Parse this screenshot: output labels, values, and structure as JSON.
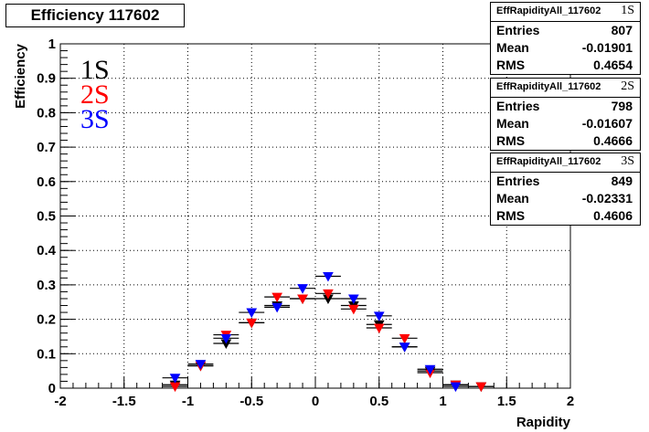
{
  "title": "Efficiency 117602",
  "chart_data": {
    "type": "scatter",
    "title": "Efficiency 117602",
    "xlabel": "Rapidity",
    "ylabel": "Efficiency",
    "xlim": [
      -2,
      2
    ],
    "ylim": [
      0,
      1
    ],
    "x_ticks": [
      "-2",
      "-1.5",
      "-1",
      "-0.5",
      "0",
      "0.5",
      "1",
      "1.5",
      "2"
    ],
    "y_ticks": [
      "0",
      "0.1",
      "0.2",
      "0.3",
      "0.4",
      "0.5",
      "0.6",
      "0.7",
      "0.8",
      "0.9",
      "1"
    ],
    "grid": true,
    "legend_position": "top-left",
    "bin_half_width": 0.1,
    "series": [
      {
        "name": "1S",
        "color": "#000000",
        "x": [
          -1.1,
          -0.9,
          -0.7,
          -0.5,
          -0.3,
          -0.1,
          0.1,
          0.3,
          0.5,
          0.7,
          0.9,
          1.1,
          1.3
        ],
        "y": [
          0.01,
          0.065,
          0.13,
          0.19,
          0.24,
          0.26,
          0.26,
          0.24,
          0.185,
          0.12,
          0.05,
          0.01,
          0.005
        ]
      },
      {
        "name": "2S",
        "color": "#ff0000",
        "x": [
          -1.1,
          -0.9,
          -0.7,
          -0.5,
          -0.3,
          -0.1,
          0.1,
          0.3,
          0.5,
          0.7,
          0.9,
          1.1,
          1.3
        ],
        "y": [
          0.005,
          0.065,
          0.155,
          0.19,
          0.265,
          0.26,
          0.275,
          0.23,
          0.175,
          0.145,
          0.045,
          0.01,
          0.005
        ]
      },
      {
        "name": "3S",
        "color": "#0000ff",
        "x": [
          -1.1,
          -0.9,
          -0.7,
          -0.5,
          -0.3,
          -0.1,
          0.1,
          0.3,
          0.5,
          0.7,
          0.9,
          1.1
        ],
        "y": [
          0.03,
          0.07,
          0.145,
          0.22,
          0.235,
          0.29,
          0.325,
          0.26,
          0.21,
          0.12,
          0.055,
          0.005
        ]
      }
    ]
  },
  "stat_boxes": [
    {
      "name": "EffRapidityAll_117602",
      "tag": "1S",
      "entries_label": "Entries",
      "entries": "807",
      "mean_label": "Mean",
      "mean": "-0.01901",
      "rms_label": "RMS",
      "rms": "0.4654"
    },
    {
      "name": "EffRapidityAll_117602",
      "tag": "2S",
      "entries_label": "Entries",
      "entries": "798",
      "mean_label": "Mean",
      "mean": "-0.01607",
      "rms_label": "RMS",
      "rms": "0.4666"
    },
    {
      "name": "EffRapidityAll_117602",
      "tag": "3S",
      "entries_label": "Entries",
      "entries": "849",
      "mean_label": "Mean",
      "mean": "-0.02331",
      "rms_label": "RMS",
      "rms": "0.4606"
    }
  ]
}
